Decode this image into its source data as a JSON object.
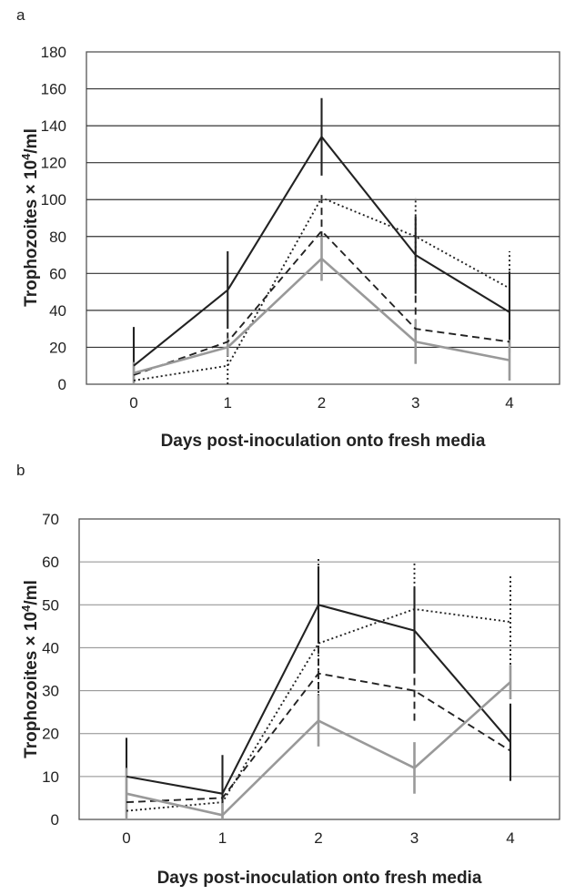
{
  "chart_data": [
    {
      "panel_label": "a",
      "type": "line",
      "xlabel": "Days post-inoculation onto fresh media",
      "ylabel_main": "Trophozoites × 10",
      "ylabel_sup": "4",
      "ylabel_tail": "/ml",
      "x": [
        0,
        1,
        2,
        3,
        4
      ],
      "tick_labels": [
        "0",
        "1",
        "2",
        "3",
        "4"
      ],
      "ylim": [
        0,
        180
      ],
      "yticks": [
        0,
        20,
        40,
        60,
        80,
        100,
        120,
        140,
        160,
        180
      ],
      "grid": true,
      "legend": "none",
      "series": [
        {
          "style": "solid-black",
          "color": "#222222",
          "values": [
            10,
            51,
            134,
            70,
            39
          ],
          "err": [
            21,
            21,
            21,
            21,
            22
          ]
        },
        {
          "style": "dotted-black",
          "color": "#222222",
          "values": [
            2,
            10,
            101,
            80,
            52
          ],
          "err": [
            2,
            10,
            2,
            21,
            20
          ]
        },
        {
          "style": "dashed-black",
          "color": "#222222",
          "values": [
            5,
            23,
            83,
            30,
            23
          ],
          "err": [
            5,
            5,
            17,
            18,
            10
          ]
        },
        {
          "style": "solid-gray",
          "color": "#999999",
          "values": [
            6,
            20,
            68,
            23,
            13
          ],
          "err": [
            6,
            5,
            12,
            12,
            11
          ]
        }
      ]
    },
    {
      "panel_label": "b",
      "type": "line",
      "xlabel": "Days post-inoculation onto fresh media",
      "ylabel_main": "Trophozoites × 10",
      "ylabel_sup": "4",
      "ylabel_tail": "/ml",
      "x": [
        0,
        1,
        2,
        3,
        4
      ],
      "tick_labels": [
        "0",
        "1",
        "2",
        "3",
        "4"
      ],
      "ylim": [
        0,
        70
      ],
      "yticks": [
        0,
        10,
        20,
        30,
        40,
        50,
        60,
        70
      ],
      "grid": true,
      "legend": "none",
      "series": [
        {
          "style": "solid-black",
          "color": "#222222",
          "values": [
            10,
            6,
            50,
            44,
            18
          ],
          "err": [
            9,
            9,
            9,
            10,
            9
          ]
        },
        {
          "style": "dotted-black",
          "color": "#222222",
          "values": [
            2,
            4,
            41,
            49,
            46
          ],
          "err": [
            3,
            5,
            20,
            11,
            11
          ]
        },
        {
          "style": "dashed-black",
          "color": "#222222",
          "values": [
            4,
            5,
            34,
            30,
            16
          ],
          "err": [
            4,
            4,
            12,
            7,
            7
          ]
        },
        {
          "style": "solid-gray",
          "color": "#999999",
          "values": [
            6,
            1,
            23,
            12,
            32
          ],
          "err": [
            6,
            3,
            6,
            6,
            4
          ]
        }
      ]
    }
  ]
}
